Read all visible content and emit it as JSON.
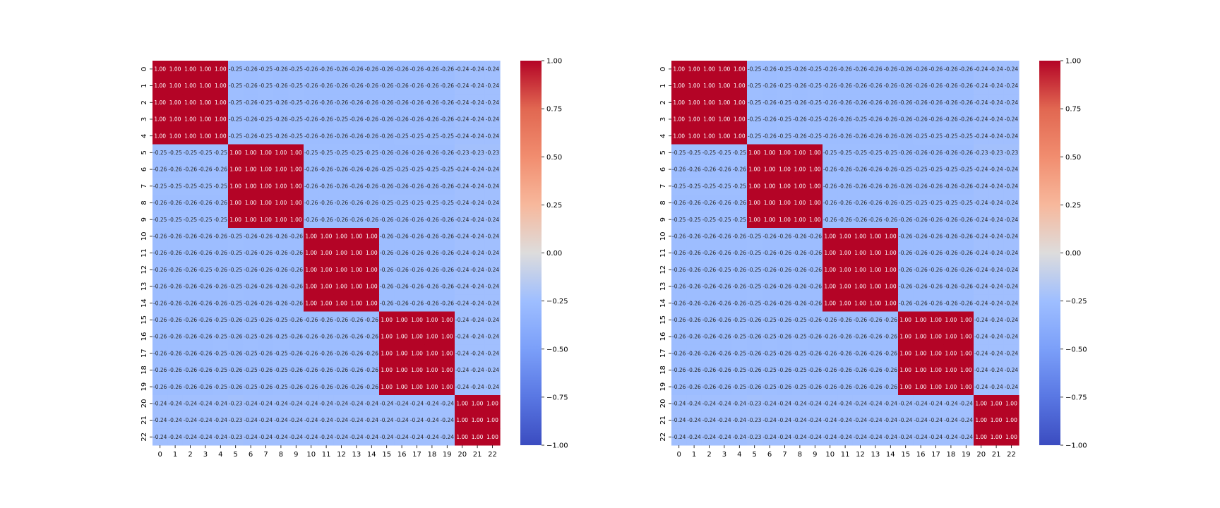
{
  "chart_data": [
    {
      "type": "heatmap",
      "colormap": "coolwarm",
      "vmin": -1.0,
      "vmax": 1.0,
      "value_format": "2 decimals",
      "labels": [
        "0",
        "1",
        "2",
        "3",
        "4",
        "5",
        "6",
        "7",
        "8",
        "9",
        "10",
        "11",
        "12",
        "13",
        "14",
        "15",
        "16",
        "17",
        "18",
        "19",
        "20",
        "21",
        "22"
      ],
      "colorbar_ticks": [
        "1.00",
        "0.75",
        "0.50",
        "0.25",
        "0.00",
        "−0.25",
        "−0.50",
        "−0.75",
        "−1.00"
      ],
      "colorbar_tick_values": [
        1.0,
        0.75,
        0.5,
        0.25,
        0.0,
        -0.25,
        -0.5,
        -0.75,
        -1.0
      ],
      "matrix": [
        [
          1,
          1,
          1,
          1,
          1,
          -0.25,
          -0.26,
          -0.25,
          -0.26,
          -0.25,
          -0.26,
          -0.26,
          -0.26,
          -0.26,
          -0.26,
          -0.26,
          -0.26,
          -0.26,
          -0.26,
          -0.26,
          -0.24,
          -0.24,
          -0.24
        ],
        [
          1,
          1,
          1,
          1,
          1,
          -0.25,
          -0.26,
          -0.25,
          -0.26,
          -0.25,
          -0.26,
          -0.26,
          -0.26,
          -0.26,
          -0.26,
          -0.26,
          -0.26,
          -0.26,
          -0.26,
          -0.26,
          -0.24,
          -0.24,
          -0.24
        ],
        [
          1,
          1,
          1,
          1,
          1,
          -0.25,
          -0.26,
          -0.25,
          -0.26,
          -0.25,
          -0.26,
          -0.26,
          -0.26,
          -0.26,
          -0.26,
          -0.26,
          -0.26,
          -0.26,
          -0.26,
          -0.26,
          -0.24,
          -0.24,
          -0.24
        ],
        [
          1,
          1,
          1,
          1,
          1,
          -0.25,
          -0.26,
          -0.25,
          -0.26,
          -0.25,
          -0.26,
          -0.26,
          -0.25,
          -0.26,
          -0.26,
          -0.26,
          -0.26,
          -0.26,
          -0.26,
          -0.26,
          -0.24,
          -0.24,
          -0.24
        ],
        [
          1,
          1,
          1,
          1,
          1,
          -0.25,
          -0.26,
          -0.25,
          -0.26,
          -0.25,
          -0.26,
          -0.26,
          -0.26,
          -0.26,
          -0.26,
          -0.26,
          -0.25,
          -0.25,
          -0.25,
          -0.25,
          -0.24,
          -0.24,
          -0.24
        ],
        [
          -0.25,
          -0.25,
          -0.25,
          -0.25,
          -0.25,
          1,
          1,
          1,
          1,
          1,
          -0.25,
          -0.25,
          -0.25,
          -0.25,
          -0.25,
          -0.26,
          -0.26,
          -0.26,
          -0.26,
          -0.26,
          -0.23,
          -0.23,
          -0.23
        ],
        [
          -0.26,
          -0.26,
          -0.26,
          -0.26,
          -0.26,
          1,
          1,
          1,
          1,
          1,
          -0.26,
          -0.26,
          -0.26,
          -0.26,
          -0.26,
          -0.25,
          -0.25,
          -0.25,
          -0.25,
          -0.25,
          -0.24,
          -0.24,
          -0.24
        ],
        [
          -0.25,
          -0.25,
          -0.25,
          -0.25,
          -0.25,
          1,
          1,
          1,
          1,
          1,
          -0.26,
          -0.26,
          -0.26,
          -0.26,
          -0.26,
          -0.26,
          -0.26,
          -0.26,
          -0.26,
          -0.26,
          -0.24,
          -0.24,
          -0.24
        ],
        [
          -0.26,
          -0.26,
          -0.26,
          -0.26,
          -0.26,
          1,
          1,
          1,
          1,
          1,
          -0.26,
          -0.26,
          -0.26,
          -0.26,
          -0.26,
          -0.25,
          -0.25,
          -0.25,
          -0.25,
          -0.25,
          -0.24,
          -0.24,
          -0.24
        ],
        [
          -0.25,
          -0.25,
          -0.25,
          -0.25,
          -0.25,
          1,
          1,
          1,
          1,
          1,
          -0.26,
          -0.26,
          -0.26,
          -0.26,
          -0.26,
          -0.26,
          -0.26,
          -0.26,
          -0.26,
          -0.26,
          -0.24,
          -0.24,
          -0.24
        ],
        [
          -0.26,
          -0.26,
          -0.26,
          -0.26,
          -0.26,
          -0.25,
          -0.26,
          -0.26,
          -0.26,
          -0.26,
          1,
          1,
          1,
          1,
          1,
          -0.26,
          -0.26,
          -0.26,
          -0.26,
          -0.26,
          -0.24,
          -0.24,
          -0.24
        ],
        [
          -0.26,
          -0.26,
          -0.26,
          -0.26,
          -0.26,
          -0.25,
          -0.26,
          -0.26,
          -0.26,
          -0.26,
          1,
          1,
          1,
          1,
          1,
          -0.26,
          -0.26,
          -0.26,
          -0.26,
          -0.26,
          -0.24,
          -0.24,
          -0.24
        ],
        [
          -0.26,
          -0.26,
          -0.26,
          -0.25,
          -0.26,
          -0.25,
          -0.26,
          -0.26,
          -0.26,
          -0.26,
          1,
          1,
          1,
          1,
          1,
          -0.26,
          -0.26,
          -0.26,
          -0.26,
          -0.26,
          -0.24,
          -0.24,
          -0.24
        ],
        [
          -0.26,
          -0.26,
          -0.26,
          -0.26,
          -0.26,
          -0.25,
          -0.26,
          -0.26,
          -0.26,
          -0.26,
          1,
          1,
          1,
          1,
          1,
          -0.26,
          -0.26,
          -0.26,
          -0.26,
          -0.26,
          -0.24,
          -0.24,
          -0.24
        ],
        [
          -0.26,
          -0.26,
          -0.26,
          -0.26,
          -0.26,
          -0.25,
          -0.26,
          -0.26,
          -0.26,
          -0.26,
          1,
          1,
          1,
          1,
          1,
          -0.26,
          -0.26,
          -0.26,
          -0.26,
          -0.26,
          -0.24,
          -0.24,
          -0.24
        ],
        [
          -0.26,
          -0.26,
          -0.26,
          -0.26,
          -0.25,
          -0.26,
          -0.25,
          -0.26,
          -0.25,
          -0.26,
          -0.26,
          -0.26,
          -0.26,
          -0.26,
          -0.26,
          1,
          1,
          1,
          1,
          1,
          -0.24,
          -0.24,
          -0.24
        ],
        [
          -0.26,
          -0.26,
          -0.26,
          -0.26,
          -0.25,
          -0.26,
          -0.25,
          -0.26,
          -0.25,
          -0.26,
          -0.26,
          -0.26,
          -0.26,
          -0.26,
          -0.26,
          1,
          1,
          1,
          1,
          1,
          -0.24,
          -0.24,
          -0.24
        ],
        [
          -0.26,
          -0.26,
          -0.26,
          -0.26,
          -0.25,
          -0.26,
          -0.25,
          -0.26,
          -0.25,
          -0.26,
          -0.26,
          -0.26,
          -0.26,
          -0.26,
          -0.26,
          1,
          1,
          1,
          1,
          1,
          -0.24,
          -0.24,
          -0.24
        ],
        [
          -0.26,
          -0.26,
          -0.26,
          -0.26,
          -0.25,
          -0.26,
          -0.25,
          -0.26,
          -0.25,
          -0.26,
          -0.26,
          -0.26,
          -0.26,
          -0.26,
          -0.26,
          1,
          1,
          1,
          1,
          1,
          -0.24,
          -0.24,
          -0.24
        ],
        [
          -0.26,
          -0.26,
          -0.26,
          -0.26,
          -0.25,
          -0.26,
          -0.25,
          -0.26,
          -0.25,
          -0.26,
          -0.26,
          -0.26,
          -0.26,
          -0.26,
          -0.26,
          1,
          1,
          1,
          1,
          1,
          -0.24,
          -0.24,
          -0.24
        ],
        [
          -0.24,
          -0.24,
          -0.24,
          -0.24,
          -0.24,
          -0.23,
          -0.24,
          -0.24,
          -0.24,
          -0.24,
          -0.24,
          -0.24,
          -0.24,
          -0.24,
          -0.24,
          -0.24,
          -0.24,
          -0.24,
          -0.24,
          -0.24,
          1,
          1,
          1
        ],
        [
          -0.24,
          -0.24,
          -0.24,
          -0.24,
          -0.24,
          -0.23,
          -0.24,
          -0.24,
          -0.24,
          -0.24,
          -0.24,
          -0.24,
          -0.24,
          -0.24,
          -0.24,
          -0.24,
          -0.24,
          -0.24,
          -0.24,
          -0.24,
          1,
          1,
          1
        ],
        [
          -0.24,
          -0.24,
          -0.24,
          -0.24,
          -0.24,
          -0.23,
          -0.24,
          -0.24,
          -0.24,
          -0.24,
          -0.24,
          -0.24,
          -0.24,
          -0.24,
          -0.24,
          -0.24,
          -0.24,
          -0.24,
          -0.24,
          -0.24,
          1,
          1,
          1
        ]
      ]
    },
    {
      "type": "heatmap",
      "colormap": "coolwarm",
      "vmin": -1.0,
      "vmax": 1.0,
      "value_format": "2 decimals",
      "labels": [
        "0",
        "1",
        "2",
        "3",
        "4",
        "5",
        "6",
        "7",
        "8",
        "9",
        "10",
        "11",
        "12",
        "13",
        "14",
        "15",
        "16",
        "17",
        "18",
        "19",
        "20",
        "21",
        "22"
      ],
      "colorbar_ticks": [
        "1.00",
        "0.75",
        "0.50",
        "0.25",
        "0.00",
        "−0.25",
        "−0.50",
        "−0.75",
        "−1.00"
      ],
      "colorbar_tick_values": [
        1.0,
        0.75,
        0.5,
        0.25,
        0.0,
        -0.25,
        -0.5,
        -0.75,
        -1.0
      ],
      "matrix": [
        [
          1,
          1,
          1,
          1,
          1,
          -0.25,
          -0.26,
          -0.25,
          -0.26,
          -0.25,
          -0.26,
          -0.26,
          -0.26,
          -0.26,
          -0.26,
          -0.26,
          -0.26,
          -0.26,
          -0.26,
          -0.26,
          -0.24,
          -0.24,
          -0.24
        ],
        [
          1,
          1,
          1,
          1,
          1,
          -0.25,
          -0.26,
          -0.25,
          -0.26,
          -0.25,
          -0.26,
          -0.26,
          -0.26,
          -0.26,
          -0.26,
          -0.26,
          -0.26,
          -0.26,
          -0.26,
          -0.26,
          -0.24,
          -0.24,
          -0.24
        ],
        [
          1,
          1,
          1,
          1,
          1,
          -0.25,
          -0.26,
          -0.25,
          -0.26,
          -0.25,
          -0.26,
          -0.26,
          -0.26,
          -0.26,
          -0.26,
          -0.26,
          -0.26,
          -0.26,
          -0.26,
          -0.26,
          -0.24,
          -0.24,
          -0.24
        ],
        [
          1,
          1,
          1,
          1,
          1,
          -0.25,
          -0.26,
          -0.25,
          -0.26,
          -0.25,
          -0.26,
          -0.26,
          -0.25,
          -0.26,
          -0.26,
          -0.26,
          -0.26,
          -0.26,
          -0.26,
          -0.26,
          -0.24,
          -0.24,
          -0.24
        ],
        [
          1,
          1,
          1,
          1,
          1,
          -0.25,
          -0.26,
          -0.25,
          -0.26,
          -0.25,
          -0.26,
          -0.26,
          -0.26,
          -0.26,
          -0.26,
          -0.26,
          -0.25,
          -0.25,
          -0.25,
          -0.25,
          -0.24,
          -0.24,
          -0.24
        ],
        [
          -0.25,
          -0.25,
          -0.25,
          -0.25,
          -0.25,
          1,
          1,
          1,
          1,
          1,
          -0.25,
          -0.25,
          -0.25,
          -0.25,
          -0.25,
          -0.26,
          -0.26,
          -0.26,
          -0.26,
          -0.26,
          -0.23,
          -0.23,
          -0.23
        ],
        [
          -0.26,
          -0.26,
          -0.26,
          -0.26,
          -0.26,
          1,
          1,
          1,
          1,
          1,
          -0.26,
          -0.26,
          -0.26,
          -0.26,
          -0.26,
          -0.25,
          -0.25,
          -0.25,
          -0.25,
          -0.25,
          -0.24,
          -0.24,
          -0.24
        ],
        [
          -0.25,
          -0.25,
          -0.25,
          -0.25,
          -0.25,
          1,
          1,
          1,
          1,
          1,
          -0.26,
          -0.26,
          -0.26,
          -0.26,
          -0.26,
          -0.26,
          -0.26,
          -0.26,
          -0.26,
          -0.26,
          -0.24,
          -0.24,
          -0.24
        ],
        [
          -0.26,
          -0.26,
          -0.26,
          -0.26,
          -0.26,
          1,
          1,
          1,
          1,
          1,
          -0.26,
          -0.26,
          -0.26,
          -0.26,
          -0.26,
          -0.25,
          -0.25,
          -0.25,
          -0.25,
          -0.25,
          -0.24,
          -0.24,
          -0.24
        ],
        [
          -0.25,
          -0.25,
          -0.25,
          -0.25,
          -0.25,
          1,
          1,
          1,
          1,
          1,
          -0.26,
          -0.26,
          -0.26,
          -0.26,
          -0.26,
          -0.26,
          -0.26,
          -0.26,
          -0.26,
          -0.26,
          -0.24,
          -0.24,
          -0.24
        ],
        [
          -0.26,
          -0.26,
          -0.26,
          -0.26,
          -0.26,
          -0.25,
          -0.26,
          -0.26,
          -0.26,
          -0.26,
          1,
          1,
          1,
          1,
          1,
          -0.26,
          -0.26,
          -0.26,
          -0.26,
          -0.26,
          -0.24,
          -0.24,
          -0.24
        ],
        [
          -0.26,
          -0.26,
          -0.26,
          -0.26,
          -0.26,
          -0.25,
          -0.26,
          -0.26,
          -0.26,
          -0.26,
          1,
          1,
          1,
          1,
          1,
          -0.26,
          -0.26,
          -0.26,
          -0.26,
          -0.26,
          -0.24,
          -0.24,
          -0.24
        ],
        [
          -0.26,
          -0.26,
          -0.26,
          -0.25,
          -0.26,
          -0.25,
          -0.26,
          -0.26,
          -0.26,
          -0.26,
          1,
          1,
          1,
          1,
          1,
          -0.26,
          -0.26,
          -0.26,
          -0.26,
          -0.26,
          -0.24,
          -0.24,
          -0.24
        ],
        [
          -0.26,
          -0.26,
          -0.26,
          -0.26,
          -0.26,
          -0.25,
          -0.26,
          -0.26,
          -0.26,
          -0.26,
          1,
          1,
          1,
          1,
          1,
          -0.26,
          -0.26,
          -0.26,
          -0.26,
          -0.26,
          -0.24,
          -0.24,
          -0.24
        ],
        [
          -0.26,
          -0.26,
          -0.26,
          -0.26,
          -0.26,
          -0.25,
          -0.26,
          -0.26,
          -0.26,
          -0.26,
          1,
          1,
          1,
          1,
          1,
          -0.26,
          -0.26,
          -0.26,
          -0.26,
          -0.26,
          -0.24,
          -0.24,
          -0.24
        ],
        [
          -0.26,
          -0.26,
          -0.26,
          -0.26,
          -0.25,
          -0.26,
          -0.25,
          -0.26,
          -0.25,
          -0.26,
          -0.26,
          -0.26,
          -0.26,
          -0.26,
          -0.26,
          1,
          1,
          1,
          1,
          1,
          -0.24,
          -0.24,
          -0.24
        ],
        [
          -0.26,
          -0.26,
          -0.26,
          -0.26,
          -0.25,
          -0.26,
          -0.25,
          -0.26,
          -0.25,
          -0.26,
          -0.26,
          -0.26,
          -0.26,
          -0.26,
          -0.26,
          1,
          1,
          1,
          1,
          1,
          -0.24,
          -0.24,
          -0.24
        ],
        [
          -0.26,
          -0.26,
          -0.26,
          -0.26,
          -0.25,
          -0.26,
          -0.25,
          -0.26,
          -0.25,
          -0.26,
          -0.26,
          -0.26,
          -0.26,
          -0.26,
          -0.26,
          1,
          1,
          1,
          1,
          1,
          -0.24,
          -0.24,
          -0.24
        ],
        [
          -0.26,
          -0.26,
          -0.26,
          -0.26,
          -0.25,
          -0.26,
          -0.25,
          -0.26,
          -0.25,
          -0.26,
          -0.26,
          -0.26,
          -0.26,
          -0.26,
          -0.26,
          1,
          1,
          1,
          1,
          1,
          -0.24,
          -0.24,
          -0.24
        ],
        [
          -0.26,
          -0.26,
          -0.26,
          -0.26,
          -0.25,
          -0.26,
          -0.25,
          -0.26,
          -0.25,
          -0.26,
          -0.26,
          -0.26,
          -0.26,
          -0.26,
          -0.26,
          1,
          1,
          1,
          1,
          1,
          -0.24,
          -0.24,
          -0.24
        ],
        [
          -0.24,
          -0.24,
          -0.24,
          -0.24,
          -0.24,
          -0.23,
          -0.24,
          -0.24,
          -0.24,
          -0.24,
          -0.24,
          -0.24,
          -0.24,
          -0.24,
          -0.24,
          -0.24,
          -0.24,
          -0.24,
          -0.24,
          -0.24,
          1,
          1,
          1
        ],
        [
          -0.24,
          -0.24,
          -0.24,
          -0.24,
          -0.24,
          -0.23,
          -0.24,
          -0.24,
          -0.24,
          -0.24,
          -0.24,
          -0.24,
          -0.24,
          -0.24,
          -0.24,
          -0.24,
          -0.24,
          -0.24,
          -0.24,
          -0.24,
          1,
          1,
          1
        ],
        [
          -0.24,
          -0.24,
          -0.24,
          -0.24,
          -0.24,
          -0.23,
          -0.24,
          -0.24,
          -0.24,
          -0.24,
          -0.24,
          -0.24,
          -0.24,
          -0.24,
          -0.24,
          -0.24,
          -0.24,
          -0.24,
          -0.24,
          -0.24,
          1,
          1,
          1
        ]
      ]
    }
  ]
}
